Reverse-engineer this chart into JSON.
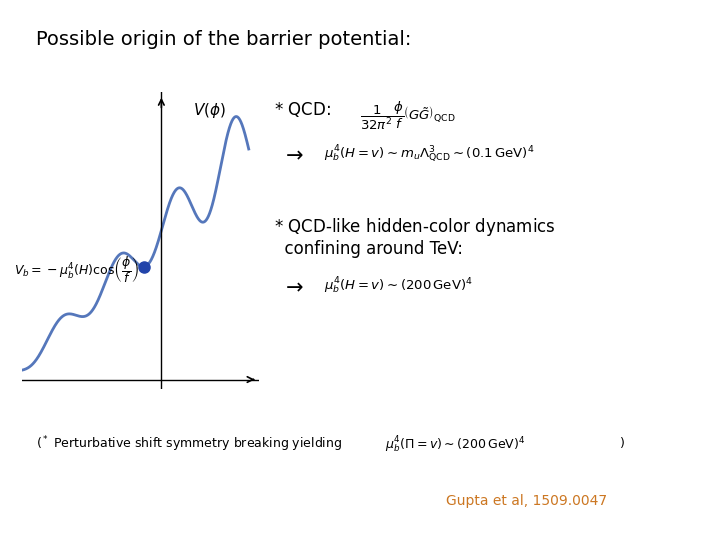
{
  "title": "Possible origin of the barrier potential:",
  "title_fontsize": 14,
  "background_color": "#ffffff",
  "curve_color": "#5577bb",
  "dot_color": "#2244aa",
  "qcd_label": "* QCD:",
  "qcd_formula": "$\\dfrac{1}{32\\pi^2}\\dfrac{\\phi}{f}\\left(G\\tilde{G}\\right)_{\\mathrm{QCD}}$",
  "arrow1_formula": "$\\mu_b^4(H=v) \\sim m_u\\Lambda_{\\mathrm{QCD}}^3 \\sim \\left(0.1\\,\\mathrm{GeV}\\right)^4$",
  "qcd_like_line1": "* QCD-like hidden-color dynamics",
  "qcd_like_line2": "  confining around TeV:",
  "arrow2_formula": "$\\mu_b^4(H=v) \\sim \\left(200\\,\\mathrm{GeV}\\right)^4$",
  "bottom_text": "$(^*$ Perturbative shift symmetry breaking yielding",
  "bottom_formula": "$\\mu_b^4(\\Pi=v) \\sim \\left(200\\,\\mathrm{GeV}\\right)^4\\,$",
  "bottom_close": "$)$",
  "citation": "Gupta et al, 1509.0047",
  "citation_color": "#cc7722"
}
